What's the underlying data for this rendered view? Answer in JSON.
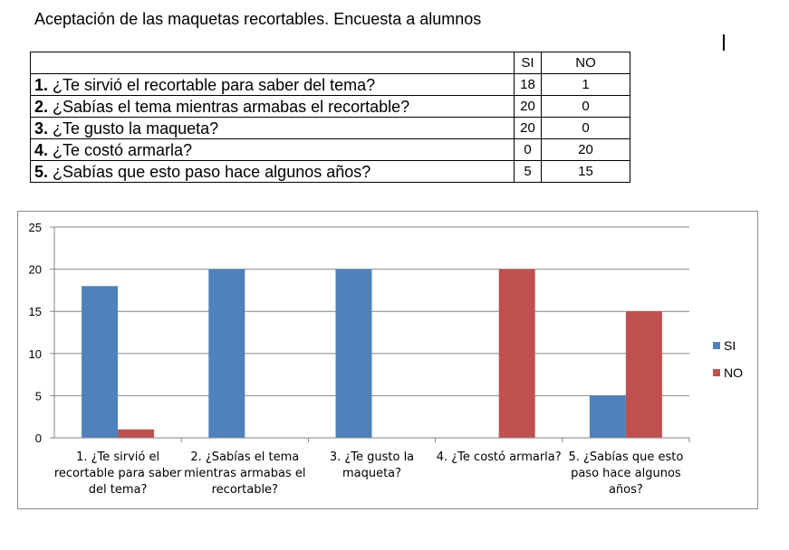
{
  "title": "Aceptación de las maquetas recortables. Encuesta a alumnos",
  "table": {
    "header": [
      "",
      "SI",
      "NO"
    ],
    "rows": [
      {
        "num": "1.",
        "question": " ¿Te sirvió el recortable para saber del tema?",
        "si": "18",
        "no": "1"
      },
      {
        "num": "2.",
        "question": " ¿Sabías el tema mientras armabas el recortable?",
        "si": "20",
        "no": "0"
      },
      {
        "num": "3.",
        "question": " ¿Te gusto la maqueta?",
        "si": "20",
        "no": "0"
      },
      {
        "num": "4.",
        "question": " ¿Te costó armarla?",
        "si": "0",
        "no": "20"
      },
      {
        "num": "5.",
        "question": " ¿Sabías que esto paso hace algunos años?",
        "si": "5",
        "no": "15"
      }
    ]
  },
  "chart_data": {
    "type": "bar",
    "categories": [
      [
        "1. ¿Te sirvió el",
        "recortable para saber",
        "del tema?"
      ],
      [
        "2. ¿Sabías el tema",
        "mientras armabas el",
        "recortable?"
      ],
      [
        "3. ¿Te gusto la",
        "maqueta?"
      ],
      [
        "4. ¿Te costó armarla?"
      ],
      [
        "5. ¿Sabías que esto",
        "paso hace algunos",
        "años?"
      ]
    ],
    "series": [
      {
        "name": "SI",
        "color": "#4f81bd",
        "values": [
          18,
          20,
          20,
          0,
          5
        ]
      },
      {
        "name": "NO",
        "color": "#c0504d",
        "values": [
          1,
          0,
          0,
          20,
          15
        ]
      }
    ],
    "ylim": [
      0,
      25
    ],
    "yticks": [
      0,
      5,
      10,
      15,
      20,
      25
    ],
    "grid": true,
    "legend": "right"
  }
}
